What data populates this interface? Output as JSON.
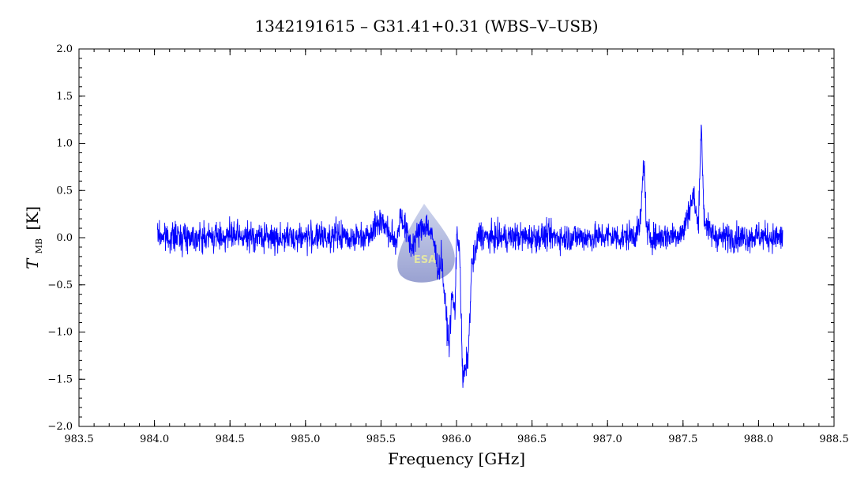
{
  "chart_data": {
    "type": "line",
    "title": "1342191615 – G31.41+0.31 (WBS–V–USB)",
    "xlabel": "Frequency [GHz]",
    "ylabel_main": "T",
    "ylabel_sub": "MB",
    "ylabel_unit": "[K]",
    "xlim": [
      983.5,
      988.5
    ],
    "ylim": [
      -2.0,
      2.0
    ],
    "x_ticks": [
      983.5,
      984.0,
      984.5,
      985.0,
      985.5,
      986.0,
      986.5,
      987.0,
      987.5,
      988.0,
      988.5
    ],
    "x_tick_labels": [
      "983.5",
      "984.0",
      "984.5",
      "985.0",
      "985.5",
      "986.0",
      "986.5",
      "987.0",
      "987.5",
      "988.0",
      "988.5"
    ],
    "y_ticks": [
      -2.0,
      -1.5,
      -1.0,
      -0.5,
      0.0,
      0.5,
      1.0,
      1.5,
      2.0
    ],
    "y_tick_labels": [
      "−2.0",
      "−1.5",
      "−1.0",
      "−0.5",
      "0.0",
      "0.5",
      "1.0",
      "1.5",
      "2.0"
    ],
    "grid": false,
    "series": [
      {
        "color": "#0000ff",
        "x": [
          984.02,
          984.1,
          984.2,
          984.3,
          984.4,
          984.5,
          984.6,
          984.7,
          984.8,
          984.9,
          985.0,
          985.1,
          985.2,
          985.3,
          985.4,
          985.45,
          985.5,
          985.55,
          985.6,
          985.63,
          985.66,
          985.7,
          985.75,
          985.8,
          985.85,
          985.88,
          985.9,
          985.93,
          985.95,
          985.97,
          985.99,
          986.0,
          986.02,
          986.04,
          986.06,
          986.08,
          986.1,
          986.12,
          986.15,
          986.2,
          986.3,
          986.4,
          986.5,
          986.6,
          986.7,
          986.8,
          986.9,
          987.0,
          987.1,
          987.2,
          987.22,
          987.24,
          987.26,
          987.3,
          987.4,
          987.5,
          987.54,
          987.57,
          987.6,
          987.62,
          987.64,
          987.68,
          987.75,
          987.8,
          987.9,
          988.0,
          988.1,
          988.16
        ],
        "y": [
          0.03,
          0.0,
          0.02,
          0.0,
          0.01,
          0.02,
          0.0,
          0.01,
          0.0,
          0.0,
          0.01,
          0.0,
          0.02,
          0.0,
          0.02,
          0.1,
          0.2,
          0.05,
          -0.05,
          0.25,
          0.1,
          -0.1,
          0.05,
          0.15,
          -0.05,
          -0.35,
          -0.2,
          -0.8,
          -1.15,
          -0.6,
          -0.8,
          0.0,
          -0.05,
          -1.5,
          -1.4,
          -1.2,
          -0.3,
          -0.2,
          0.05,
          0.0,
          0.0,
          0.01,
          0.0,
          0.02,
          0.0,
          0.01,
          0.0,
          0.02,
          0.0,
          0.05,
          0.2,
          0.85,
          0.05,
          0.0,
          0.02,
          0.05,
          0.3,
          0.45,
          0.1,
          1.2,
          0.2,
          0.05,
          0.0,
          0.01,
          0.0,
          0.02,
          0.0,
          0.0
        ],
        "noise_rms": 0.075
      }
    ],
    "watermark_text": "ESA"
  }
}
